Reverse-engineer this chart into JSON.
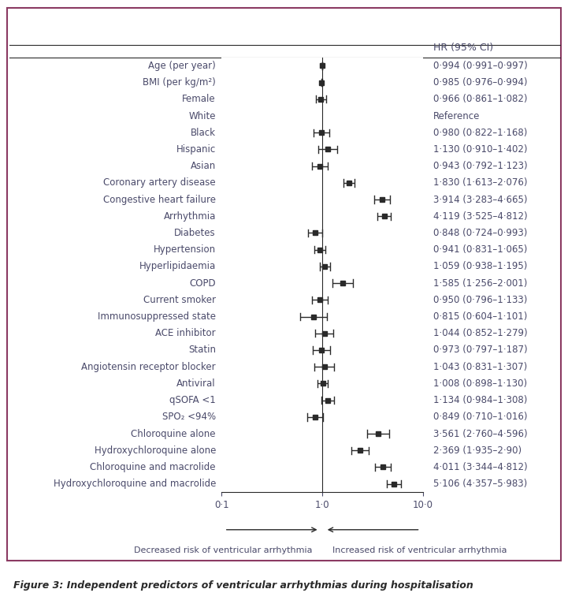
{
  "rows": [
    {
      "label": "Age (per year)",
      "hr": 0.994,
      "lo": 0.991,
      "hi": 0.997,
      "text": "0·994 (0·991–0·997)",
      "reference": false
    },
    {
      "label": "BMI (per kg/m²)",
      "hr": 0.985,
      "lo": 0.976,
      "hi": 0.994,
      "text": "0·985 (0·976–0·994)",
      "reference": false
    },
    {
      "label": "Female",
      "hr": 0.966,
      "lo": 0.861,
      "hi": 1.082,
      "text": "0·966 (0·861–1·082)",
      "reference": false
    },
    {
      "label": "White",
      "hr": null,
      "lo": null,
      "hi": null,
      "text": "Reference",
      "reference": true
    },
    {
      "label": "Black",
      "hr": 0.98,
      "lo": 0.822,
      "hi": 1.168,
      "text": "0·980 (0·822–1·168)",
      "reference": false
    },
    {
      "label": "Hispanic",
      "hr": 1.13,
      "lo": 0.91,
      "hi": 1.402,
      "text": "1·130 (0·910–1·402)",
      "reference": false
    },
    {
      "label": "Asian",
      "hr": 0.943,
      "lo": 0.792,
      "hi": 1.123,
      "text": "0·943 (0·792–1·123)",
      "reference": false
    },
    {
      "label": "Coronary artery disease",
      "hr": 1.83,
      "lo": 1.613,
      "hi": 2.076,
      "text": "1·830 (1·613–2·076)",
      "reference": false
    },
    {
      "label": "Congestive heart failure",
      "hr": 3.914,
      "lo": 3.283,
      "hi": 4.665,
      "text": "3·914 (3·283–4·665)",
      "reference": false
    },
    {
      "label": "Arrhythmia",
      "hr": 4.119,
      "lo": 3.525,
      "hi": 4.812,
      "text": "4·119 (3·525–4·812)",
      "reference": false
    },
    {
      "label": "Diabetes",
      "hr": 0.848,
      "lo": 0.724,
      "hi": 0.993,
      "text": "0·848 (0·724–0·993)",
      "reference": false
    },
    {
      "label": "Hypertension",
      "hr": 0.941,
      "lo": 0.831,
      "hi": 1.065,
      "text": "0·941 (0·831–1·065)",
      "reference": false
    },
    {
      "label": "Hyperlipidaemia",
      "hr": 1.059,
      "lo": 0.938,
      "hi": 1.195,
      "text": "1·059 (0·938–1·195)",
      "reference": false
    },
    {
      "label": "COPD",
      "hr": 1.585,
      "lo": 1.256,
      "hi": 2.001,
      "text": "1·585 (1·256–2·001)",
      "reference": false
    },
    {
      "label": "Current smoker",
      "hr": 0.95,
      "lo": 0.796,
      "hi": 1.133,
      "text": "0·950 (0·796–1·133)",
      "reference": false
    },
    {
      "label": "Immunosuppressed state",
      "hr": 0.815,
      "lo": 0.604,
      "hi": 1.101,
      "text": "0·815 (0·604–1·101)",
      "reference": false
    },
    {
      "label": "ACE inhibitor",
      "hr": 1.044,
      "lo": 0.852,
      "hi": 1.279,
      "text": "1·044 (0·852–1·279)",
      "reference": false
    },
    {
      "label": "Statin",
      "hr": 0.973,
      "lo": 0.797,
      "hi": 1.187,
      "text": "0·973 (0·797–1·187)",
      "reference": false
    },
    {
      "label": "Angiotensin receptor blocker",
      "hr": 1.043,
      "lo": 0.831,
      "hi": 1.307,
      "text": "1·043 (0·831–1·307)",
      "reference": false
    },
    {
      "label": "Antiviral",
      "hr": 1.008,
      "lo": 0.898,
      "hi": 1.13,
      "text": "1·008 (0·898–1·130)",
      "reference": false
    },
    {
      "label": "qSOFA <1",
      "hr": 1.134,
      "lo": 0.984,
      "hi": 1.308,
      "text": "1·134 (0·984–1·308)",
      "reference": false
    },
    {
      "label": "SPO₂ <94%",
      "hr": 0.849,
      "lo": 0.71,
      "hi": 1.016,
      "text": "0·849 (0·710–1·016)",
      "reference": false
    },
    {
      "label": "Chloroquine alone",
      "hr": 3.561,
      "lo": 2.76,
      "hi": 4.596,
      "text": "3·561 (2·760–4·596)",
      "reference": false
    },
    {
      "label": "Hydroxychloroquine alone",
      "hr": 2.369,
      "lo": 1.935,
      "hi": 2.9,
      "text": "2·369 (1·935–2·90)",
      "reference": false
    },
    {
      "label": "Chloroquine and macrolide",
      "hr": 4.011,
      "lo": 3.344,
      "hi": 4.812,
      "text": "4·011 (3·344–4·812)",
      "reference": false
    },
    {
      "label": "Hydroxychloroquine and macrolide",
      "hr": 5.106,
      "lo": 4.357,
      "hi": 5.983,
      "text": "5·106 (4·357–5·983)",
      "reference": false
    }
  ],
  "xmin": 0.1,
  "xmax": 10.0,
  "xticks": [
    0.1,
    1.0,
    10.0
  ],
  "xticklabels": [
    "0·1",
    "1·0",
    "10·0"
  ],
  "vline": 1.0,
  "col_header": "HR (95% CI)",
  "figure_caption": "Figure 3: Independent predictors of ventricular arrhythmias during hospitalisation",
  "arrow_left_label": "Decreased risk of ventricular arrhythmia",
  "arrow_right_label": "Increased risk of ventricular arrhythmia",
  "text_color": "#4a4a6a",
  "line_color": "#2a2a2a",
  "border_color": "#8b3a62",
  "bg_color": "#ffffff",
  "fontsize": 8.5,
  "caption_fontsize": 9.0
}
